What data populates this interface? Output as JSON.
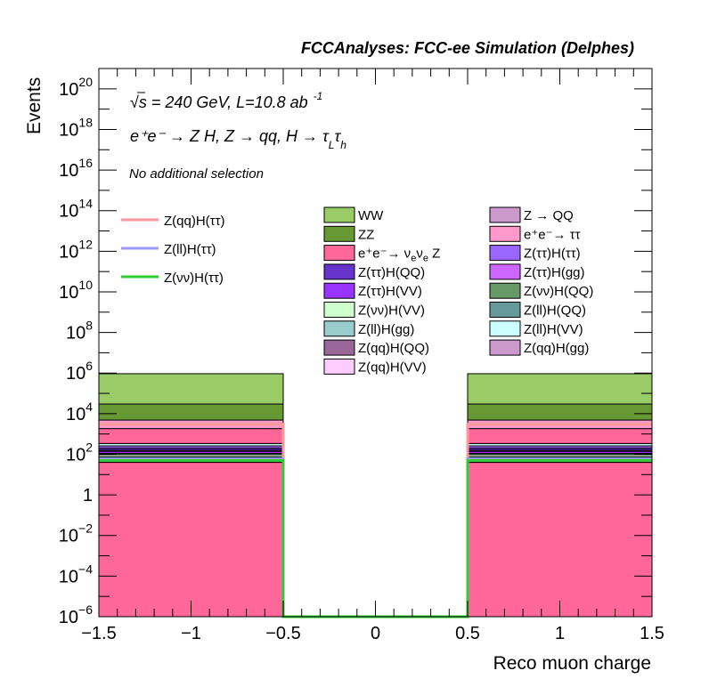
{
  "chart_data": {
    "type": "bar",
    "stacked": true,
    "log_y": true,
    "header": "FCCAnalyses: FCC-ee Simulation (Delphes)",
    "energy_text": "√s = 240 GeV, L=10.8 ab",
    "energy_sup": "-1",
    "process_text": "e⁺e⁻ → Z H, Z → qq, H → τ",
    "process_sub1": "L",
    "process_tau2": "τ",
    "process_sub2": "h",
    "selection_text": "No additional selection",
    "xlabel": "Reco muon charge",
    "ylabel": "Events",
    "xlim": [
      -1.5,
      1.5
    ],
    "ylim_exp": [
      -6,
      21
    ],
    "x_ticks": [
      {
        "v": -1.5,
        "label": "−1.5"
      },
      {
        "v": -1,
        "label": "−1"
      },
      {
        "v": -0.5,
        "label": "−0.5"
      },
      {
        "v": 0,
        "label": "0"
      },
      {
        "v": 0.5,
        "label": "0.5"
      },
      {
        "v": 1,
        "label": "1"
      },
      {
        "v": 1.5,
        "label": "1.5"
      }
    ],
    "y_ticks": [
      {
        "exp": -6,
        "base": "10",
        "sup": "−6"
      },
      {
        "exp": -4,
        "base": "10",
        "sup": "−4"
      },
      {
        "exp": -2,
        "base": "10",
        "sup": "−2"
      },
      {
        "exp": 0,
        "base": "1",
        "sup": ""
      },
      {
        "exp": 2,
        "base": "10",
        "sup": "2"
      },
      {
        "exp": 4,
        "base": "10",
        "sup": "4"
      },
      {
        "exp": 6,
        "base": "10",
        "sup": "6"
      },
      {
        "exp": 8,
        "base": "10",
        "sup": "8"
      },
      {
        "exp": 10,
        "base": "10",
        "sup": "10"
      },
      {
        "exp": 12,
        "base": "10",
        "sup": "12"
      },
      {
        "exp": 14,
        "base": "10",
        "sup": "14"
      },
      {
        "exp": 16,
        "base": "10",
        "sup": "16"
      },
      {
        "exp": 18,
        "base": "10",
        "sup": "18"
      },
      {
        "exp": 20,
        "base": "10",
        "sup": "20"
      }
    ],
    "bins": [
      {
        "x0": -1.5,
        "x1": -0.5
      },
      {
        "x0": 0.5,
        "x1": 1.5
      }
    ],
    "stack": [
      {
        "color": "#ff6699",
        "values": [
          40,
          40
        ]
      },
      {
        "color": "#cc99cc",
        "values": [
          0,
          0.1
        ]
      },
      {
        "color": "#996699",
        "values": [
          12,
          12
        ]
      },
      {
        "color": "#ffccff",
        "values": [
          5,
          5
        ]
      },
      {
        "color": "#99cccc",
        "values": [
          10,
          10
        ]
      },
      {
        "color": "#669999",
        "values": [
          8,
          8
        ]
      },
      {
        "color": "#ccffcc",
        "values": [
          20,
          20
        ]
      },
      {
        "color": "#669966",
        "values": [
          15,
          15
        ]
      },
      {
        "color": "#9933ff",
        "values": [
          30,
          30
        ]
      },
      {
        "color": "#cc66ff",
        "values": [
          20,
          20
        ]
      },
      {
        "color": "#6633cc",
        "values": [
          40,
          40
        ]
      },
      {
        "color": "#9966ff",
        "values": [
          60,
          60
        ]
      },
      {
        "color": "#ccffff",
        "values": [
          80,
          80
        ]
      },
      {
        "color": "#ff6699",
        "values": [
          1500,
          1500
        ]
      },
      {
        "color": "#ff99cc",
        "values": [
          3000,
          3000
        ]
      },
      {
        "color": "#669933",
        "values": [
          25000,
          25000
        ]
      },
      {
        "color": "#99cc66",
        "values": [
          900000,
          900000
        ]
      }
    ],
    "lines": [
      {
        "color": "#ff9999",
        "values": [
          3000,
          3000
        ]
      },
      {
        "color": "#9999ff",
        "values": [
          60,
          60
        ]
      },
      {
        "color": "#33cc33",
        "values": [
          50,
          50
        ]
      }
    ],
    "underflow_floor_exp": -6,
    "line_legend": [
      {
        "label": "Z(qq)H(ττ)",
        "color": "#ff9999"
      },
      {
        "label": "Z(ll)H(ττ)",
        "color": "#9999ff"
      },
      {
        "label": "Z(νν)H(ττ)",
        "color": "#33cc33"
      }
    ],
    "legend_col1": [
      {
        "label": "WW",
        "color": "#99cc66"
      },
      {
        "label": "ZZ",
        "color": "#669933"
      },
      {
        "label": "e⁺e⁻→ ν",
        "sub": "e",
        "label2": "ν",
        "sub2": "e",
        "label3": " Z",
        "color": "#ff6699"
      },
      {
        "label": "Z(ττ)H(QQ)",
        "color": "#6633cc"
      },
      {
        "label": "Z(ττ)H(VV)",
        "color": "#9933ff"
      },
      {
        "label": "Z(νν)H(VV)",
        "color": "#ccffcc"
      },
      {
        "label": "Z(ll)H(gg)",
        "color": "#99cccc"
      },
      {
        "label": "Z(qq)H(QQ)",
        "color": "#996699"
      },
      {
        "label": "Z(qq)H(VV)",
        "color": "#ffccff"
      }
    ],
    "legend_col2": [
      {
        "label": "Z → QQ",
        "color": "#cc99cc"
      },
      {
        "label": "e⁺e⁻→ ττ",
        "color": "#ff99cc"
      },
      {
        "label": "Z(ττ)H(ττ)",
        "color": "#9966ff"
      },
      {
        "label": "Z(ττ)H(gg)",
        "color": "#cc66ff"
      },
      {
        "label": "Z(νν)H(QQ)",
        "color": "#669966"
      },
      {
        "label": "Z(ll)H(QQ)",
        "color": "#669999"
      },
      {
        "label": "Z(ll)H(VV)",
        "color": "#ccffff"
      },
      {
        "label": "Z(qq)H(gg)",
        "color": "#cc99cc"
      }
    ]
  }
}
